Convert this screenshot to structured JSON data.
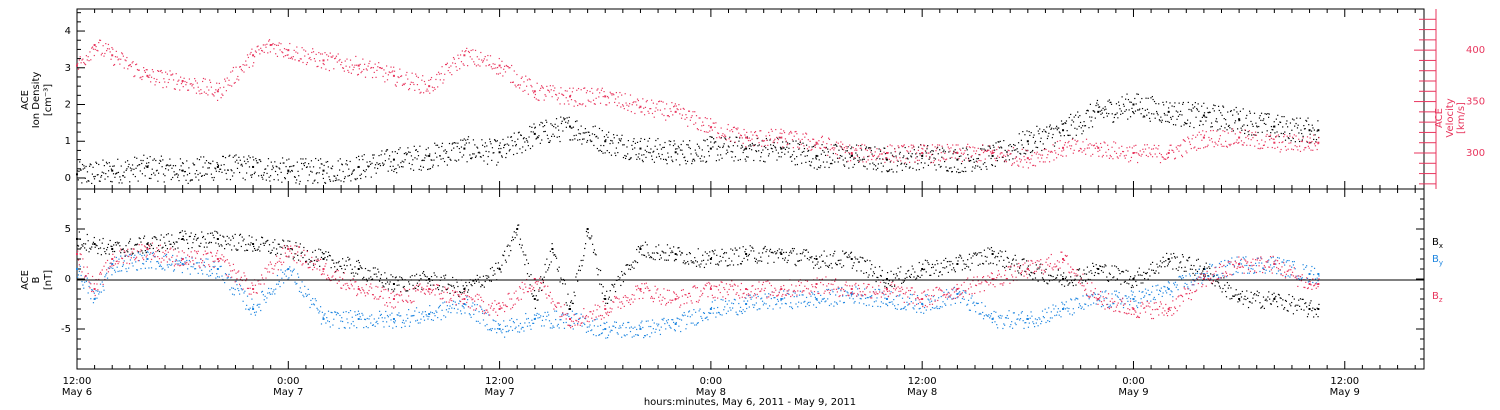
{
  "colors": {
    "black": "#000000",
    "red": "#e8365e",
    "blue": "#1f86e0"
  },
  "xaxis": {
    "title": "hours:minutes, May  6, 2011 - May  9, 2011",
    "ticks": [
      {
        "t": 0,
        "time": "12:00",
        "date": "May 6"
      },
      {
        "t": 12,
        "time": "0:00",
        "date": "May 7"
      },
      {
        "t": 24,
        "time": "12:00",
        "date": "May 7"
      },
      {
        "t": 36,
        "time": "0:00",
        "date": "May 8"
      },
      {
        "t": 48,
        "time": "12:00",
        "date": "May 8"
      },
      {
        "t": 60,
        "time": "0:00",
        "date": "May 9"
      },
      {
        "t": 72,
        "time": "12:00",
        "date": "May 9"
      }
    ],
    "range": [
      0,
      76.5
    ]
  },
  "top_panel": {
    "ylabel_left": [
      "ACE",
      "Ion Density",
      "[cm⁻³]"
    ],
    "ylabel_right": [
      "ACE",
      "Velocity",
      "[km/s]"
    ],
    "left_ticks": [
      "0",
      "1",
      "2",
      "3",
      "4"
    ],
    "right_ticks": [
      "300",
      "350",
      "400"
    ]
  },
  "bottom_panel": {
    "ylabel": [
      "ACE",
      "B",
      "[nT]"
    ],
    "ticks": [
      "-5",
      "0",
      "5"
    ],
    "legend": [
      "Bx",
      "By",
      "Bz"
    ]
  },
  "chart_data": [
    {
      "type": "scatter",
      "panel": "top",
      "x_units": "hours since May 6 12:00",
      "ylim_left": [
        -0.3,
        4.6
      ],
      "ylim_right": [
        265,
        440
      ],
      "series": [
        {
          "name": "Ion Density",
          "axis": "left",
          "color": "#000000",
          "x": [
            0,
            2,
            4,
            6,
            8,
            10,
            12,
            14,
            16,
            18,
            20,
            22,
            24,
            26,
            28,
            30,
            32,
            34,
            36,
            38,
            40,
            42,
            44,
            46,
            48,
            50,
            52,
            54,
            56,
            58,
            60,
            62,
            64,
            66,
            68,
            70,
            70.5
          ],
          "y": [
            0.1,
            0.2,
            0.3,
            0.2,
            0.3,
            0.3,
            0.2,
            0.2,
            0.3,
            0.5,
            0.6,
            0.8,
            0.7,
            1.2,
            1.4,
            1.0,
            0.8,
            0.7,
            0.8,
            0.8,
            0.8,
            0.6,
            0.6,
            0.5,
            0.6,
            0.5,
            0.6,
            1.0,
            1.3,
            1.8,
            2.0,
            1.8,
            1.7,
            1.6,
            1.4,
            1.3,
            1.3
          ]
        },
        {
          "name": "Velocity",
          "axis": "right",
          "color": "#e8365e",
          "x": [
            0,
            1,
            2,
            4,
            6,
            8,
            10,
            11,
            12,
            14,
            16,
            18,
            20,
            22,
            24,
            26,
            28,
            30,
            32,
            34,
            36,
            38,
            40,
            42,
            44,
            46,
            48,
            50,
            52,
            54,
            56,
            58,
            60,
            62,
            64,
            66,
            68,
            70,
            70.5
          ],
          "y": [
            385,
            405,
            395,
            375,
            370,
            360,
            395,
            405,
            400,
            390,
            385,
            375,
            365,
            395,
            385,
            360,
            355,
            355,
            345,
            340,
            325,
            315,
            315,
            310,
            300,
            300,
            300,
            300,
            300,
            295,
            305,
            305,
            300,
            300,
            315,
            315,
            310,
            310,
            310
          ]
        }
      ]
    },
    {
      "type": "scatter",
      "panel": "bottom",
      "x_units": "hours since May 6 12:00",
      "ylim": [
        -9,
        9
      ],
      "series": [
        {
          "name": "Bx",
          "color": "#000000",
          "x": [
            0,
            1,
            2,
            4,
            6,
            8,
            10,
            12,
            14,
            16,
            18,
            20,
            22,
            24,
            25,
            26,
            27,
            28,
            29,
            30,
            32,
            34,
            36,
            38,
            40,
            42,
            44,
            46,
            48,
            50,
            52,
            54,
            56,
            58,
            60,
            62,
            64,
            66,
            68,
            70,
            70.5
          ],
          "y": [
            4,
            3.5,
            3,
            3.5,
            4,
            4,
            3.5,
            3,
            2,
            1,
            -0.5,
            0,
            -1,
            1,
            5,
            -2,
            3,
            -3,
            5,
            -2,
            3,
            2.5,
            2,
            2.5,
            2.5,
            2,
            2,
            0,
            1,
            1.5,
            2.5,
            1,
            0,
            1,
            0,
            2,
            1,
            -2,
            -2,
            -3,
            -3
          ]
        },
        {
          "name": "By",
          "color": "#1f86e0",
          "x": [
            0,
            1,
            2,
            4,
            6,
            8,
            10,
            12,
            14,
            16,
            18,
            20,
            22,
            24,
            26,
            28,
            30,
            32,
            34,
            36,
            38,
            40,
            42,
            44,
            46,
            48,
            50,
            52,
            54,
            56,
            58,
            60,
            62,
            64,
            66,
            68,
            70,
            70.5
          ],
          "y": [
            1,
            -2,
            1.5,
            2,
            1.5,
            1,
            -3,
            1,
            -4,
            -4,
            -4,
            -3.5,
            -2.5,
            -5,
            -4,
            -4,
            -5,
            -5,
            -4.5,
            -3,
            -2.5,
            -2,
            -2,
            -1.5,
            -2,
            -2.5,
            -1.5,
            -4,
            -4,
            -3,
            -2,
            -2,
            -1,
            0.5,
            1.5,
            1.5,
            0.5,
            0.5
          ]
        },
        {
          "name": "Bz",
          "color": "#e8365e",
          "x": [
            0,
            1,
            2,
            4,
            6,
            8,
            10,
            12,
            14,
            16,
            18,
            20,
            22,
            24,
            26,
            28,
            30,
            32,
            34,
            36,
            38,
            40,
            42,
            44,
            46,
            48,
            50,
            52,
            54,
            56,
            58,
            60,
            62,
            64,
            66,
            68,
            70,
            70.5
          ],
          "y": [
            2.5,
            -1,
            2,
            3,
            2,
            2,
            -1,
            3,
            1,
            -1,
            -2,
            -1,
            -2,
            -3,
            0,
            -4,
            -3,
            -1,
            -2,
            -1,
            -1,
            -1,
            -0.5,
            -1,
            -1,
            -2,
            -1,
            0,
            1,
            2,
            -2,
            -3,
            -3,
            0,
            1.5,
            1.5,
            -0.5,
            -0.5
          ]
        }
      ]
    }
  ]
}
